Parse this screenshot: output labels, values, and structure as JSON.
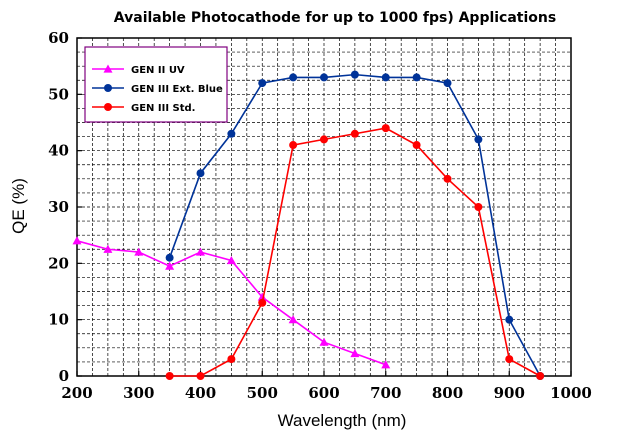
{
  "chart_data": {
    "type": "line",
    "title": "Available Photocathode for up to 1000 fps) Applications",
    "xlabel": "Wavelength (nm)",
    "ylabel": "QE (%)",
    "xlim": [
      200,
      1000
    ],
    "ylim": [
      0,
      60
    ],
    "x_ticks": [
      200,
      300,
      400,
      500,
      600,
      700,
      800,
      900,
      1000
    ],
    "y_ticks": [
      0,
      10,
      20,
      30,
      40,
      50,
      60
    ],
    "x_ticks_text": [
      "200",
      "300",
      "400",
      "500",
      "600",
      "700",
      "800",
      "900",
      "1000"
    ],
    "y_ticks_text": [
      "0",
      "10",
      "20",
      "30",
      "40",
      "50",
      "60"
    ],
    "grid": true,
    "grid_style": "dashed",
    "legend_position": "top-left",
    "series": [
      {
        "name": "GEN II UV",
        "color": "#ff00ff",
        "marker": "triangle",
        "x": [
          200,
          250,
          300,
          350,
          400,
          450,
          500,
          550,
          600,
          650,
          700
        ],
        "y": [
          24,
          22.5,
          22,
          19.5,
          22,
          20.5,
          14,
          10,
          6,
          4,
          2
        ]
      },
      {
        "name": "GEN III Ext. Blue",
        "color": "#003399",
        "marker": "circle",
        "x": [
          350,
          400,
          450,
          500,
          550,
          600,
          650,
          700,
          750,
          800,
          850,
          900,
          950
        ],
        "y": [
          21,
          36,
          43,
          52,
          53,
          53,
          53.5,
          53,
          53,
          52,
          42,
          10,
          0
        ]
      },
      {
        "name": "GEN III Std.",
        "color": "#ff0000",
        "marker": "circle",
        "x": [
          350,
          400,
          450,
          500,
          550,
          600,
          650,
          700,
          750,
          800,
          850,
          900,
          950
        ],
        "y": [
          0,
          0,
          3,
          13,
          41,
          42,
          43,
          44,
          41,
          35,
          30,
          3,
          0
        ]
      }
    ]
  }
}
